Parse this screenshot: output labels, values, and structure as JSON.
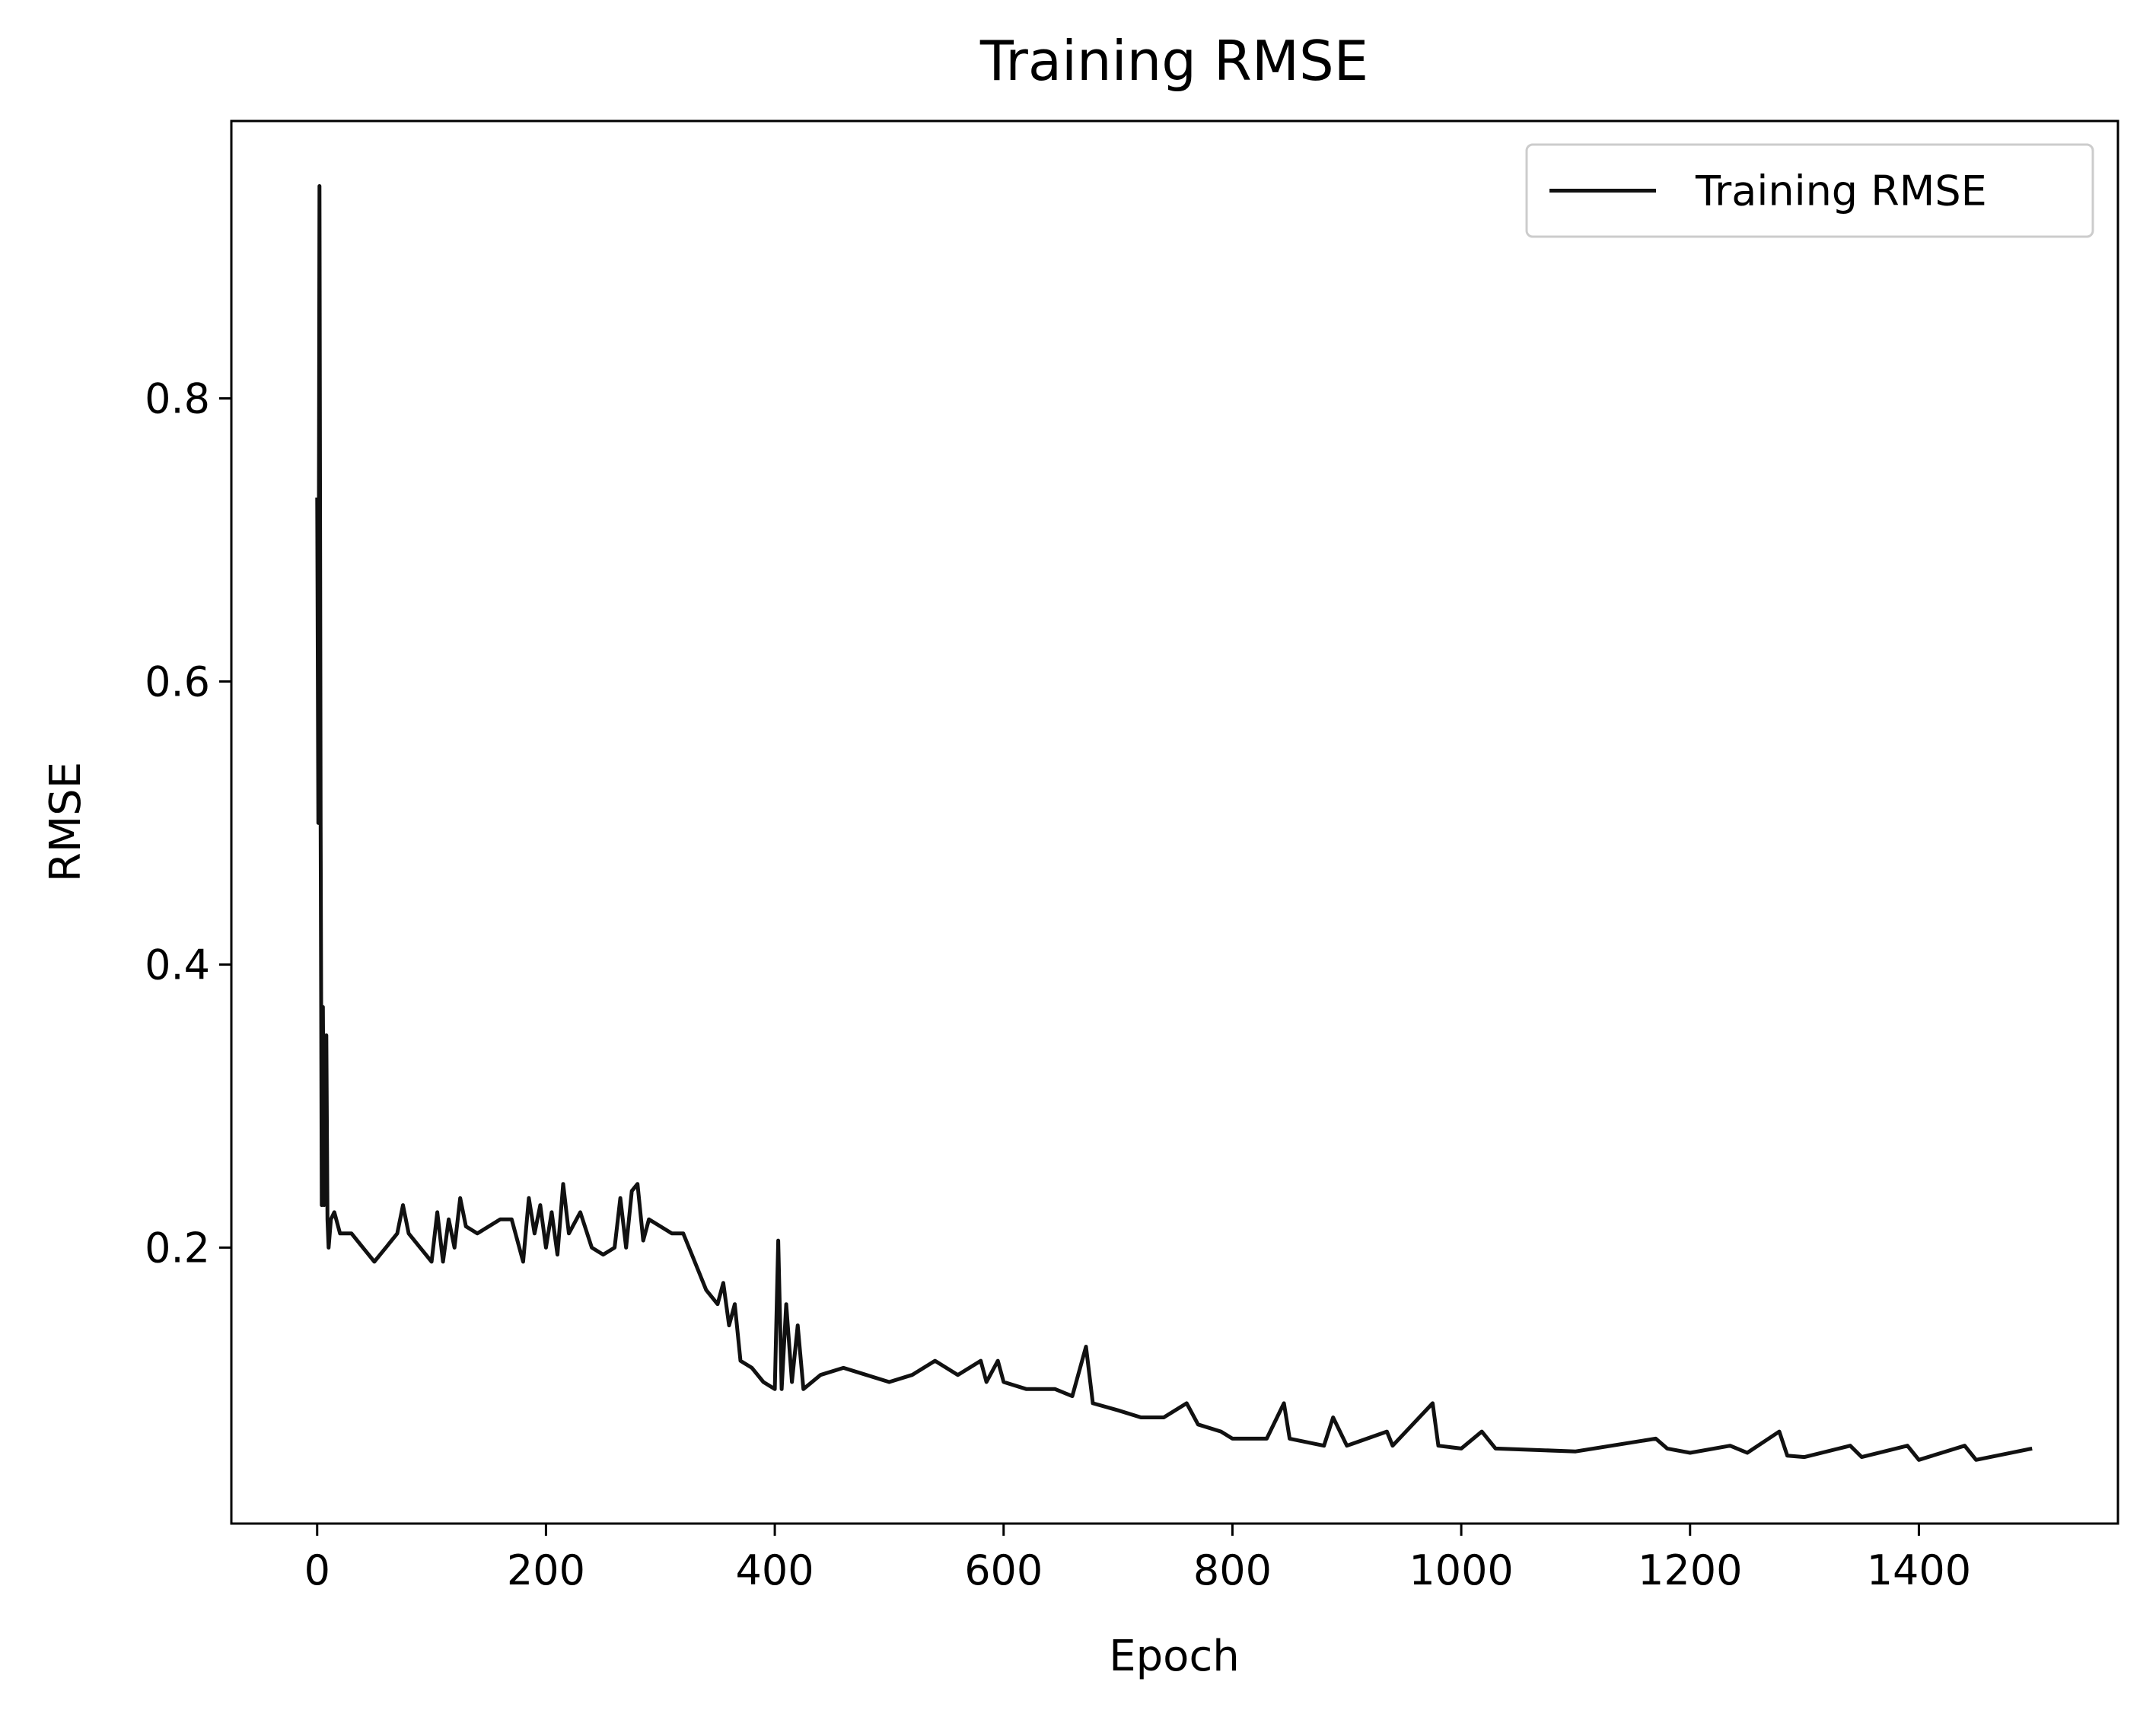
{
  "chart_data": {
    "type": "line",
    "title": "Training RMSE",
    "x_label": "Epoch",
    "y_label": "RMSE",
    "x": [
      0,
      1,
      2,
      3,
      4,
      5,
      6,
      8,
      9,
      10,
      12,
      15,
      20,
      30,
      40,
      50,
      60,
      70,
      75,
      80,
      90,
      100,
      105,
      110,
      115,
      120,
      125,
      130,
      140,
      150,
      160,
      170,
      180,
      185,
      190,
      195,
      200,
      205,
      210,
      215,
      220,
      230,
      240,
      250,
      260,
      265,
      270,
      275,
      280,
      285,
      290,
      300,
      310,
      320,
      330,
      340,
      350,
      355,
      360,
      365,
      370,
      380,
      390,
      400,
      403,
      406,
      410,
      415,
      420,
      425,
      440,
      460,
      480,
      500,
      520,
      540,
      560,
      580,
      585,
      595,
      600,
      620,
      645,
      660,
      672,
      678,
      700,
      720,
      740,
      760,
      770,
      790,
      800,
      830,
      845,
      850,
      880,
      888,
      900,
      935,
      940,
      975,
      980,
      1000,
      1018,
      1030,
      1100,
      1170,
      1180,
      1200,
      1235,
      1250,
      1278,
      1285,
      1300,
      1340,
      1350,
      1390,
      1400,
      1440,
      1450,
      1499
    ],
    "series": [
      {
        "name": "Training RMSE",
        "color": "#111111",
        "values": [
          0.73,
          0.5,
          0.95,
          0.5,
          0.23,
          0.37,
          0.23,
          0.35,
          0.22,
          0.2,
          0.22,
          0.225,
          0.21,
          0.21,
          0.2,
          0.19,
          0.2,
          0.21,
          0.23,
          0.21,
          0.2,
          0.19,
          0.225,
          0.19,
          0.22,
          0.2,
          0.235,
          0.215,
          0.21,
          0.215,
          0.22,
          0.22,
          0.19,
          0.235,
          0.21,
          0.23,
          0.2,
          0.225,
          0.195,
          0.245,
          0.21,
          0.225,
          0.2,
          0.195,
          0.2,
          0.235,
          0.2,
          0.24,
          0.245,
          0.205,
          0.22,
          0.215,
          0.21,
          0.21,
          0.19,
          0.17,
          0.16,
          0.175,
          0.145,
          0.16,
          0.12,
          0.115,
          0.105,
          0.1,
          0.205,
          0.1,
          0.16,
          0.105,
          0.145,
          0.1,
          0.11,
          0.115,
          0.11,
          0.105,
          0.11,
          0.12,
          0.11,
          0.12,
          0.105,
          0.12,
          0.105,
          0.1,
          0.1,
          0.095,
          0.13,
          0.09,
          0.085,
          0.08,
          0.08,
          0.09,
          0.075,
          0.07,
          0.065,
          0.065,
          0.09,
          0.065,
          0.06,
          0.08,
          0.06,
          0.07,
          0.06,
          0.09,
          0.06,
          0.058,
          0.07,
          0.058,
          0.056,
          0.065,
          0.058,
          0.055,
          0.06,
          0.055,
          0.07,
          0.053,
          0.052,
          0.06,
          0.052,
          0.06,
          0.05,
          0.06,
          0.05,
          0.058
        ]
      }
    ],
    "xlim": [
      -75,
      1574
    ],
    "ylim": [
      0.005,
      0.996
    ],
    "xticks": [
      0,
      200,
      400,
      600,
      800,
      1000,
      1200,
      1400
    ],
    "yticks": [
      0.2,
      0.4,
      0.6,
      0.8
    ],
    "legend": "upper right",
    "grid": false
  }
}
